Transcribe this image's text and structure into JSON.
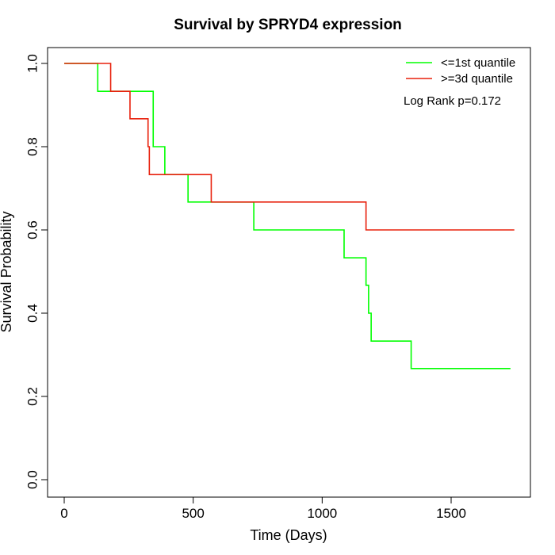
{
  "chart_data": {
    "type": "line",
    "title": "Survival by SPRYD4 expression",
    "xlabel": "Time (Days)",
    "ylabel": "Survival Probability",
    "xlim": [
      0,
      1800
    ],
    "ylim": [
      0,
      1
    ],
    "x_ticks": [
      0,
      500,
      1000,
      1500
    ],
    "y_ticks": [
      0.0,
      0.2,
      0.4,
      0.6,
      0.8,
      1.0
    ],
    "x_tick_labels": [
      "0",
      "500",
      "1000",
      "1500"
    ],
    "y_tick_labels": [
      "0.0",
      "0.2",
      "0.4",
      "0.6",
      "0.8",
      "1.0"
    ],
    "legend_position": "top-right",
    "grid": false,
    "annotation": "Log Rank p=0.172",
    "series": [
      {
        "name": "<=1st quantile",
        "color": "#00ff00",
        "step": true,
        "x": [
          0,
          130,
          345,
          390,
          480,
          735,
          1085,
          1170,
          1180,
          1190,
          1345,
          1730
        ],
        "y": [
          1.0,
          0.933,
          0.8,
          0.733,
          0.667,
          0.6,
          0.533,
          0.467,
          0.4,
          0.333,
          0.267,
          0.267
        ]
      },
      {
        "name": ">=3d quantile",
        "color": "#e8200c",
        "step": true,
        "x": [
          0,
          180,
          255,
          325,
          330,
          570,
          1170,
          1745
        ],
        "y": [
          1.0,
          0.933,
          0.867,
          0.8,
          0.733,
          0.667,
          0.6,
          0.6
        ]
      }
    ]
  }
}
